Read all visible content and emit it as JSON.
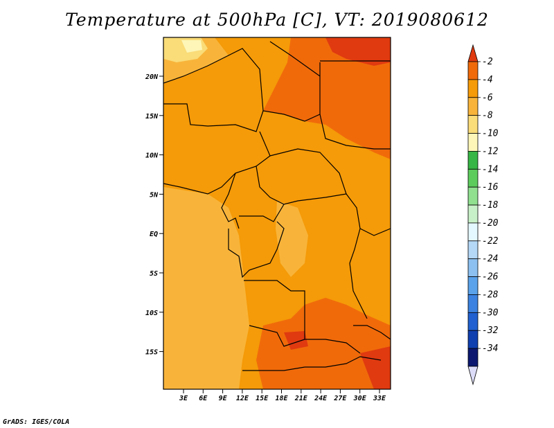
{
  "title": "Temperature at 500hPa [C], VT: 2019080612",
  "credit": "GrADS: IGES/COLA",
  "map": {
    "lat_labels": [
      "20N",
      "15N",
      "10N",
      "5N",
      "EQ",
      "5S",
      "10S",
      "15S"
    ],
    "lon_labels": [
      "3E",
      "6E",
      "9E",
      "12E",
      "15E",
      "18E",
      "21E",
      "24E",
      "27E",
      "30E",
      "33E"
    ]
  },
  "colorbar": {
    "labels": [
      "-2",
      "-4",
      "-6",
      "-8",
      "-10",
      "-12",
      "-14",
      "-16",
      "-18",
      "-20",
      "-22",
      "-24",
      "-26",
      "-28",
      "-30",
      "-32",
      "-34"
    ],
    "colors": [
      "#e03a10",
      "#f06a0a",
      "#f59a08",
      "#f8b43a",
      "#fadc78",
      "#fdf6b8",
      "#36b644",
      "#5ccc5c",
      "#90e090",
      "#c8f0c8",
      "#e4f8ff",
      "#b4d8f6",
      "#8cc0f0",
      "#5aa2ea",
      "#3c82e0",
      "#2060d0",
      "#1040b0",
      "#0c1870",
      "#dcdcf8"
    ]
  },
  "palette": {
    "temp_m2": "#e03a10",
    "temp_m4": "#f06a0a",
    "temp_m6": "#f59a08",
    "temp_m8": "#f8b43a",
    "temp_m10": "#fadc78",
    "temp_m12": "#fdf6b8"
  }
}
